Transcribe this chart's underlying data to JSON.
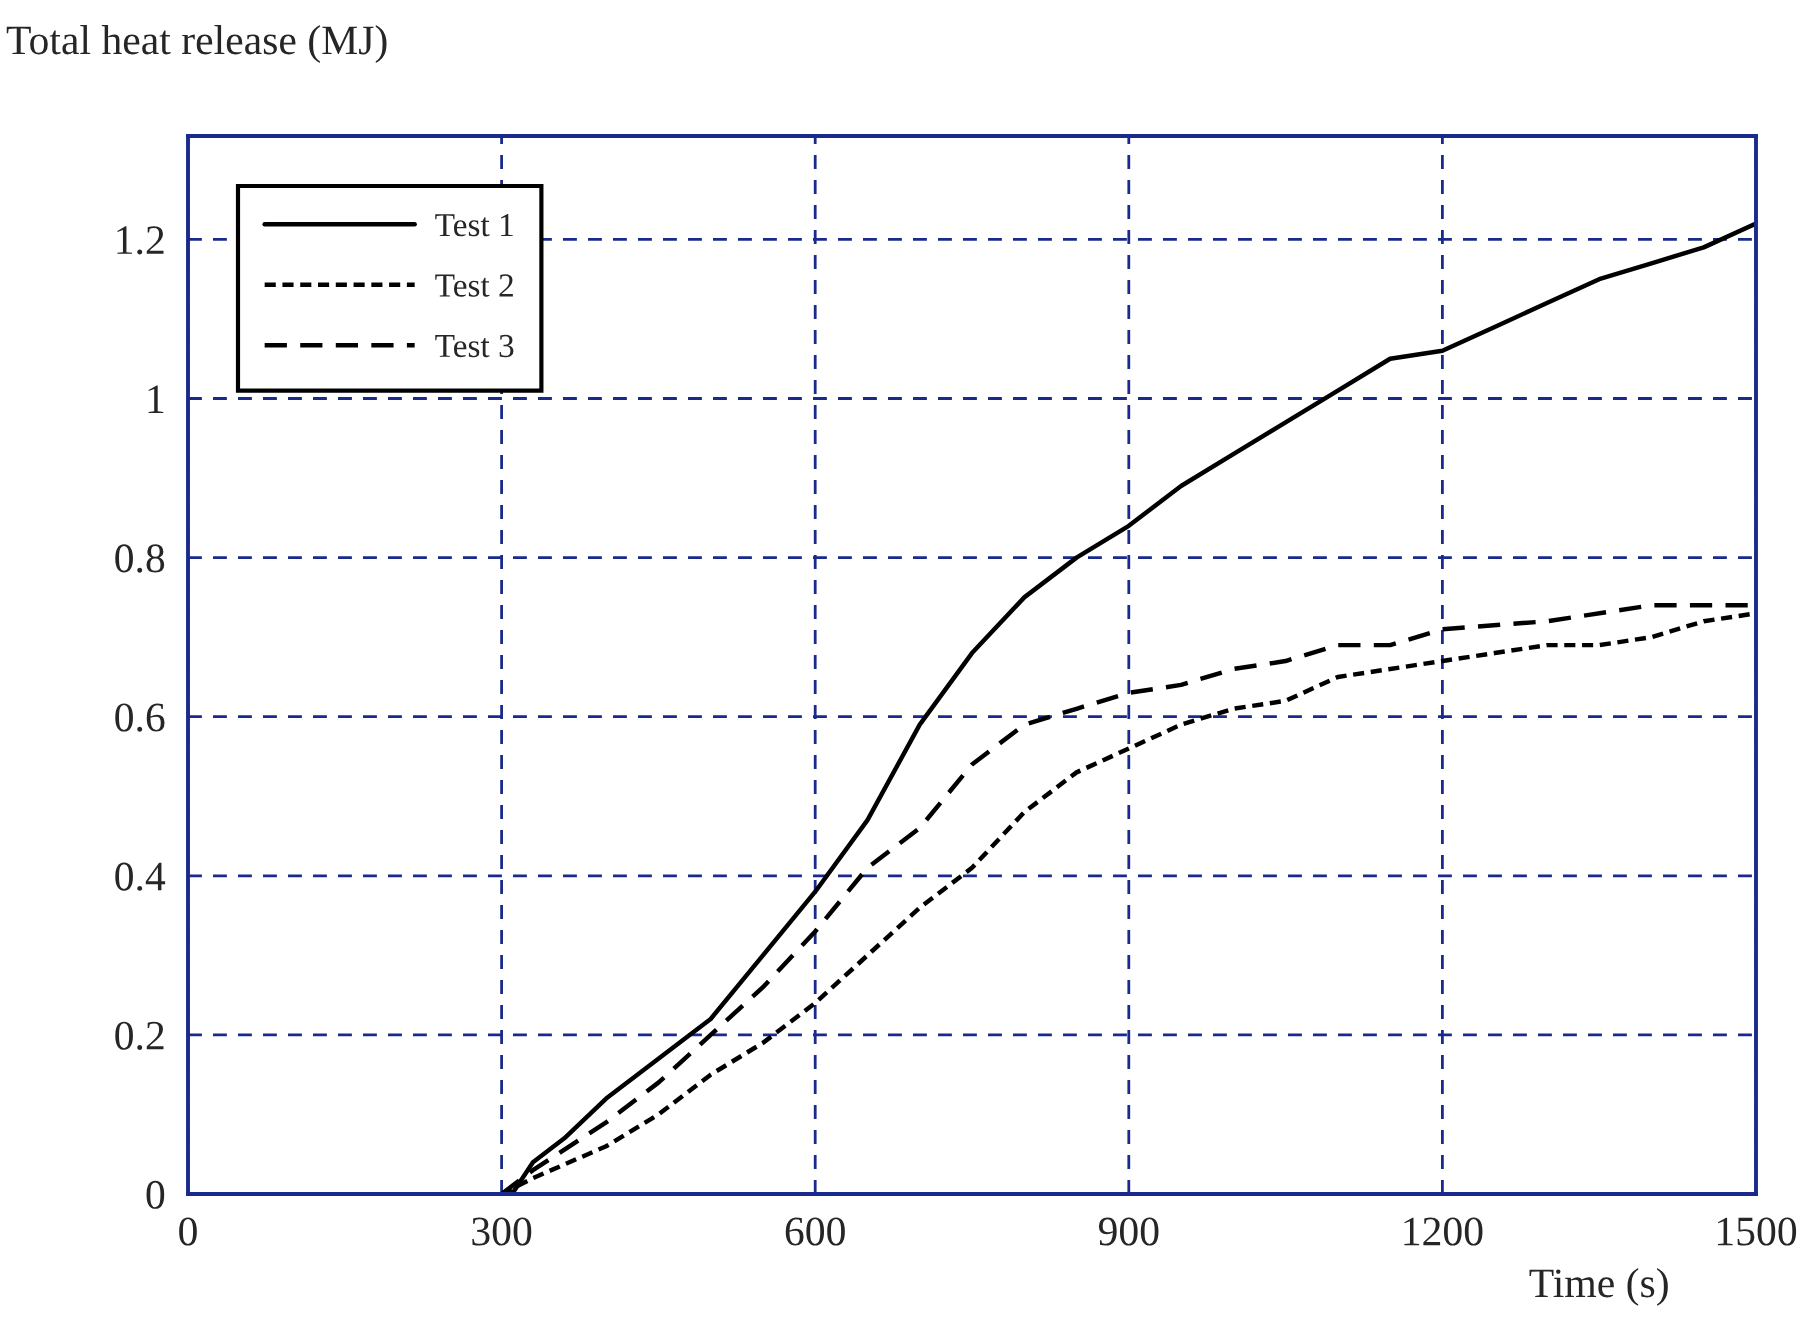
{
  "chart_data": {
    "type": "line",
    "ylabel": "Total heat release (MJ)",
    "xlabel": "Time (s)",
    "xlim": [
      0,
      1500
    ],
    "xticks": [
      0,
      300,
      600,
      900,
      1200,
      1500
    ],
    "ylim": [
      0,
      1.33
    ],
    "yticks": [
      0,
      0.2,
      0.4,
      0.6,
      0.8,
      1,
      1.2
    ],
    "grid": true,
    "legend": "top left",
    "series": [
      {
        "name": "Test 1",
        "color": "#000000",
        "line_style": "solid",
        "x": [
          300,
          310,
          330,
          360,
          400,
          450,
          500,
          550,
          600,
          650,
          700,
          750,
          800,
          850,
          900,
          950,
          1000,
          1050,
          1100,
          1150,
          1200,
          1250,
          1300,
          1350,
          1400,
          1450,
          1500
        ],
        "values": [
          0,
          0,
          0.04,
          0.07,
          0.12,
          0.17,
          0.22,
          0.3,
          0.38,
          0.47,
          0.59,
          0.68,
          0.75,
          0.8,
          0.84,
          0.89,
          0.93,
          0.97,
          1.01,
          1.05,
          1.06,
          1.09,
          1.12,
          1.15,
          1.17,
          1.19,
          1.22
        ]
      },
      {
        "name": "Test 2",
        "color": "#000000",
        "line_style": "dotted",
        "x": [
          300,
          330,
          400,
          450,
          500,
          550,
          600,
          650,
          700,
          750,
          800,
          850,
          900,
          950,
          1000,
          1050,
          1100,
          1150,
          1200,
          1250,
          1300,
          1350,
          1400,
          1450,
          1500
        ],
        "values": [
          0,
          0.02,
          0.06,
          0.1,
          0.15,
          0.19,
          0.24,
          0.3,
          0.36,
          0.41,
          0.48,
          0.53,
          0.56,
          0.59,
          0.61,
          0.62,
          0.65,
          0.66,
          0.67,
          0.68,
          0.69,
          0.69,
          0.7,
          0.72,
          0.73
        ]
      },
      {
        "name": "Test 3",
        "color": "#000000",
        "line_style": "dashed",
        "x": [
          300,
          330,
          400,
          450,
          500,
          550,
          600,
          650,
          700,
          750,
          800,
          850,
          900,
          950,
          1000,
          1050,
          1100,
          1150,
          1200,
          1300,
          1400,
          1500
        ],
        "values": [
          0,
          0.03,
          0.09,
          0.14,
          0.2,
          0.26,
          0.33,
          0.41,
          0.46,
          0.54,
          0.59,
          0.61,
          0.63,
          0.64,
          0.66,
          0.67,
          0.69,
          0.69,
          0.71,
          0.72,
          0.74,
          0.74
        ]
      }
    ]
  }
}
